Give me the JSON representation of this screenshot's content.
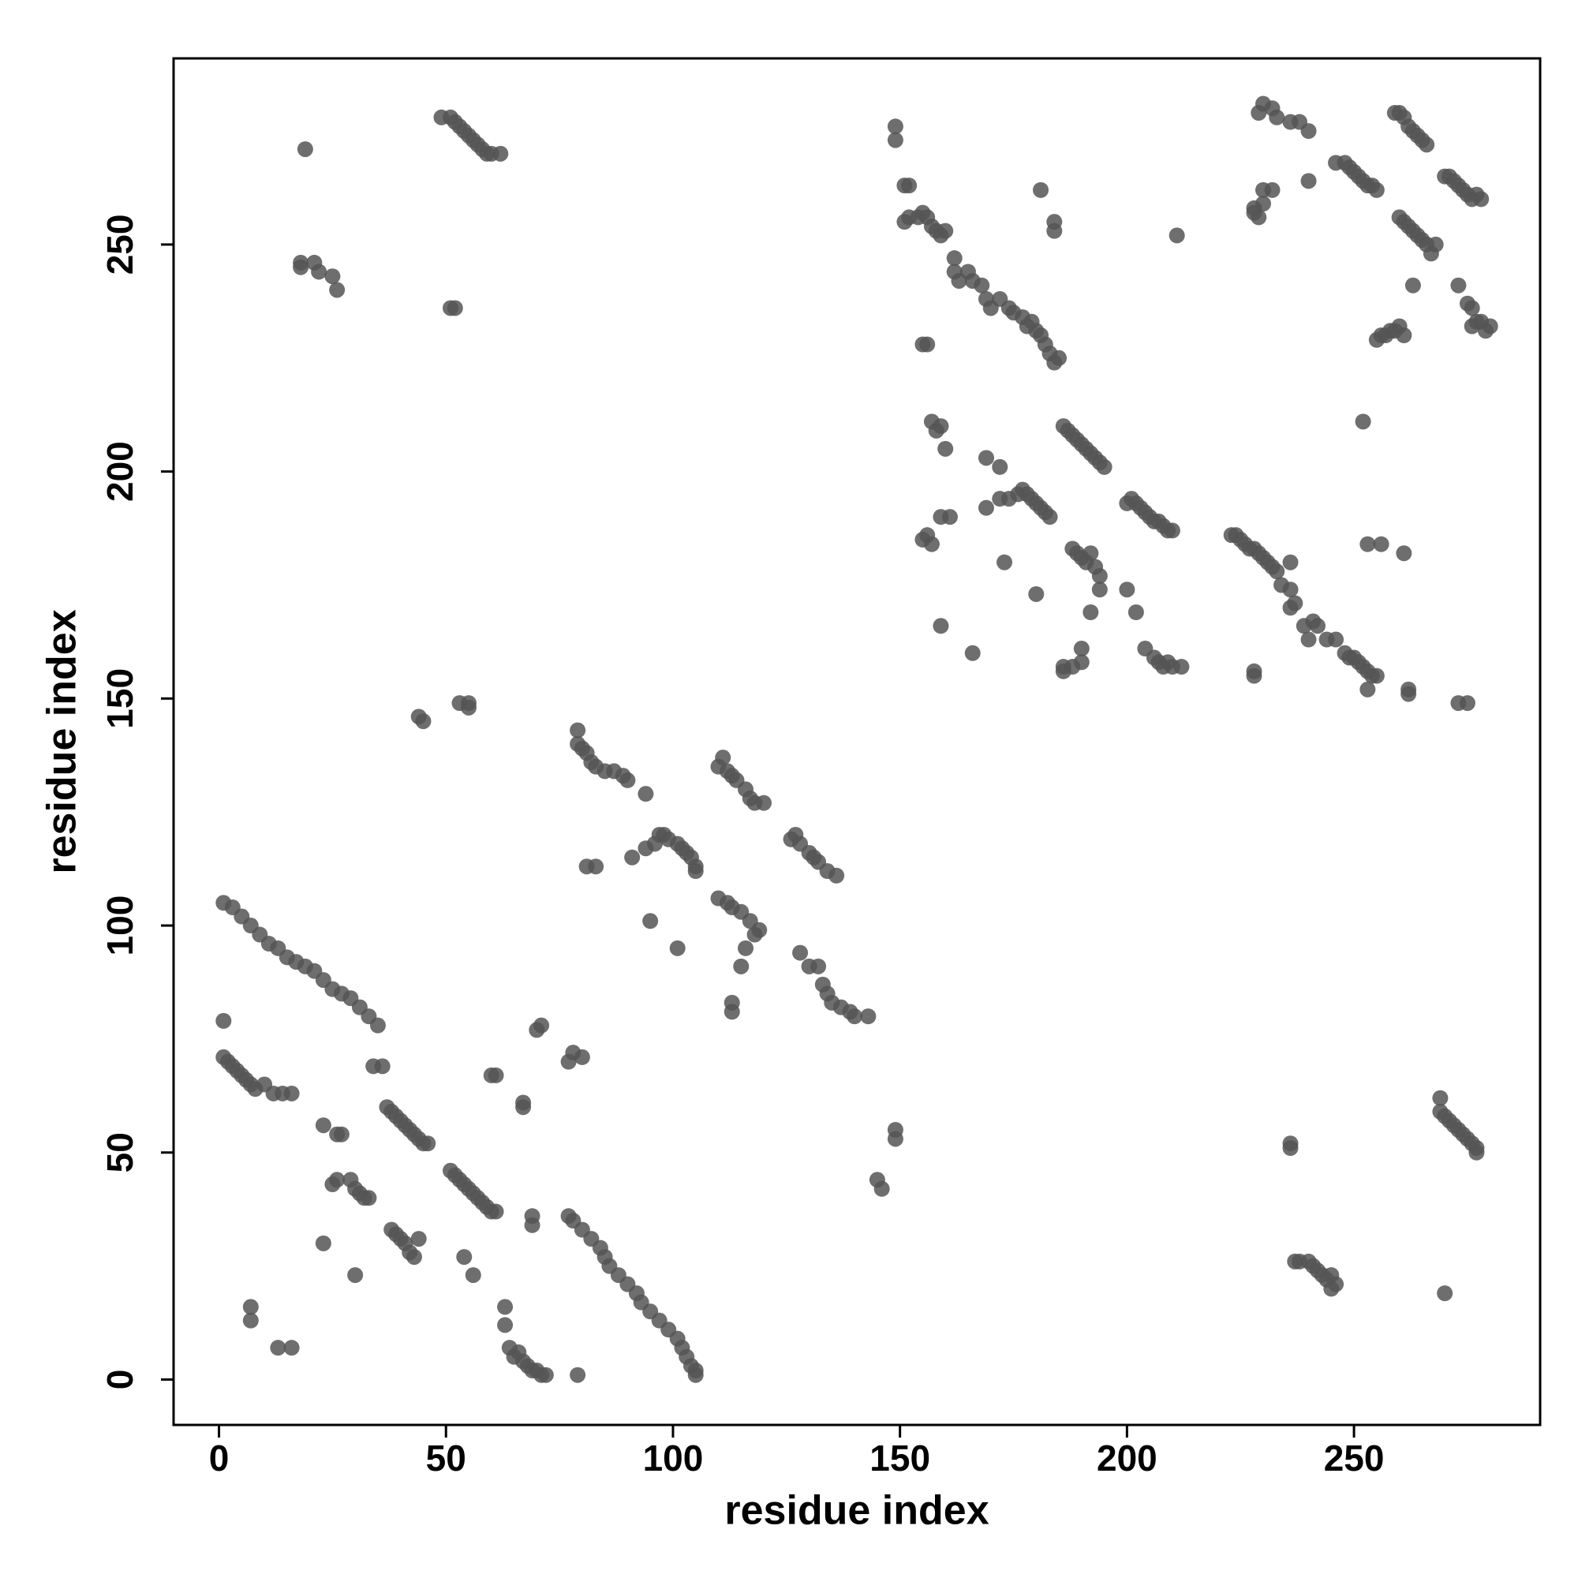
{
  "chart_data": {
    "type": "scatter",
    "xlabel": "residue index",
    "ylabel": "residue index",
    "color": "#555555",
    "xlim": [
      -10,
      291
    ],
    "ylim": [
      -10,
      291
    ],
    "xticks": [
      0,
      50,
      100,
      150,
      200,
      250
    ],
    "yticks": [
      0,
      50,
      100,
      150,
      200,
      250
    ],
    "x": [
      1,
      3,
      5,
      7,
      9,
      11,
      13,
      15,
      17,
      19,
      21,
      23,
      25,
      27,
      29,
      31,
      33,
      35,
      1,
      2,
      3,
      4,
      5,
      6,
      7,
      8,
      10,
      12,
      14,
      16,
      1,
      37,
      38,
      39,
      40,
      41,
      42,
      43,
      44,
      45,
      46,
      34,
      36,
      51,
      52,
      53,
      54,
      55,
      56,
      57,
      58,
      59,
      60,
      61,
      25,
      26,
      29,
      30,
      31,
      32,
      33,
      23,
      26,
      27,
      38,
      39,
      40,
      41,
      42,
      43,
      44,
      23,
      30,
      54,
      56,
      7,
      7,
      13,
      16,
      77,
      78,
      80,
      82,
      84,
      85,
      86,
      88,
      90,
      92,
      93,
      95,
      97,
      99,
      101,
      102,
      103,
      104,
      105,
      105,
      63,
      63,
      64,
      65,
      66,
      67,
      68,
      69,
      70,
      71,
      72,
      79,
      69,
      69,
      67,
      67,
      60,
      61,
      70,
      71,
      77,
      78,
      80,
      49,
      51,
      52,
      53,
      54,
      55,
      56,
      57,
      58,
      59,
      60,
      62,
      19,
      18,
      18,
      21,
      22,
      25,
      26,
      51,
      52,
      44,
      45,
      53,
      55,
      55,
      79,
      79,
      80,
      81,
      82,
      83,
      85,
      87,
      89,
      90,
      94,
      81,
      83,
      91,
      94,
      96,
      97,
      98,
      99,
      101,
      102,
      103,
      104,
      105,
      105,
      95,
      101,
      110,
      111,
      112,
      113,
      114,
      116,
      117,
      118,
      120,
      110,
      112,
      113,
      115,
      117,
      118,
      119,
      116,
      115,
      113,
      113,
      126,
      127,
      128,
      130,
      131,
      132,
      134,
      136,
      128,
      130,
      132,
      133,
      134,
      135,
      137,
      139,
      140,
      143,
      145,
      146,
      149,
      149,
      149,
      149,
      151,
      152,
      151,
      152,
      154,
      155,
      156,
      157,
      158,
      159,
      160,
      162,
      162,
      163,
      165,
      166,
      168,
      169,
      170,
      172,
      174,
      175,
      177,
      178,
      179,
      180,
      181,
      182,
      183,
      184,
      185,
      181,
      184,
      184,
      155,
      156,
      211,
      155,
      156,
      157,
      157,
      158,
      159,
      160,
      159,
      161,
      159,
      166,
      169,
      169,
      172,
      172,
      173,
      174,
      176,
      177,
      178,
      179,
      180,
      181,
      182,
      183,
      180,
      186,
      186,
      188,
      190,
      190,
      186,
      187,
      188,
      189,
      190,
      191,
      192,
      193,
      194,
      195,
      188,
      189,
      190,
      191,
      192,
      193,
      194,
      194,
      192,
      200,
      201,
      202,
      203,
      204,
      205,
      206,
      207,
      208,
      209,
      210,
      200,
      202,
      204,
      206,
      207,
      208,
      209,
      210,
      212,
      223,
      224,
      225,
      226,
      227,
      228,
      229,
      230,
      231,
      232,
      233,
      234,
      236,
      236,
      236,
      237,
      239,
      240,
      241,
      242,
      244,
      246,
      248,
      249,
      250,
      251,
      252,
      253,
      254,
      255,
      253,
      256,
      253,
      261,
      262,
      262,
      252,
      228,
      228,
      275,
      273,
      228,
      228,
      229,
      230,
      230,
      232,
      229,
      230,
      232,
      233,
      236,
      238,
      240,
      240,
      246,
      248,
      249,
      250,
      251,
      252,
      253,
      254,
      255,
      259,
      260,
      261,
      262,
      263,
      264,
      265,
      266,
      260,
      261,
      262,
      263,
      264,
      265,
      266,
      267,
      268,
      263,
      270,
      271,
      272,
      273,
      274,
      275,
      276,
      277,
      278,
      273,
      275,
      276,
      277,
      276,
      278,
      279,
      280,
      255,
      256,
      257,
      258,
      259,
      260,
      261,
      269,
      269,
      270,
      271,
      272,
      273,
      274,
      275,
      276,
      277,
      277,
      236,
      236,
      237,
      238,
      240,
      241,
      242,
      243,
      244,
      245,
      246,
      245,
      270
    ],
    "values": [
      105,
      104,
      102,
      100,
      98,
      96,
      95,
      93,
      92,
      91,
      90,
      88,
      86,
      85,
      84,
      82,
      80,
      78,
      71,
      70,
      69,
      68,
      67,
      66,
      65,
      64,
      65,
      63,
      63,
      63,
      79,
      60,
      59,
      58,
      57,
      56,
      55,
      54,
      53,
      52,
      52,
      69,
      69,
      46,
      45,
      44,
      43,
      42,
      41,
      40,
      39,
      38,
      37,
      37,
      43,
      44,
      44,
      42,
      41,
      40,
      40,
      56,
      54,
      54,
      33,
      32,
      31,
      30,
      28,
      27,
      31,
      30,
      23,
      27,
      23,
      16,
      13,
      7,
      7,
      36,
      35,
      33,
      31,
      29,
      27,
      25,
      23,
      21,
      19,
      17,
      15,
      13,
      11,
      9,
      7,
      5,
      3,
      2,
      1,
      16,
      12,
      7,
      5,
      6,
      4,
      3,
      2,
      2,
      1,
      1,
      1,
      36,
      34,
      61,
      60,
      67,
      67,
      77,
      78,
      70,
      72,
      71,
      278,
      278,
      277,
      276,
      275,
      274,
      273,
      272,
      271,
      270,
      270,
      270,
      271,
      246,
      245,
      246,
      244,
      243,
      240,
      236,
      236,
      146,
      145,
      149,
      149,
      148,
      143,
      140,
      139,
      138,
      136,
      135,
      134,
      134,
      133,
      132,
      129,
      113,
      113,
      115,
      117,
      118,
      120,
      120,
      119,
      118,
      117,
      116,
      115,
      113,
      112,
      101,
      95,
      135,
      137,
      134,
      133,
      132,
      130,
      128,
      127,
      127,
      106,
      105,
      104,
      103,
      101,
      98,
      99,
      95,
      91,
      83,
      81,
      119,
      120,
      118,
      116,
      115,
      114,
      112,
      111,
      94,
      91,
      91,
      87,
      85,
      83,
      82,
      81,
      80,
      80,
      44,
      42,
      55,
      53,
      276,
      273,
      263,
      263,
      255,
      256,
      256,
      257,
      256,
      254,
      253,
      252,
      253,
      247,
      244,
      242,
      244,
      242,
      241,
      238,
      236,
      238,
      236,
      235,
      234,
      232,
      233,
      231,
      230,
      228,
      226,
      224,
      225,
      262,
      255,
      253,
      228,
      228,
      252,
      185,
      186,
      184,
      211,
      209,
      210,
      205,
      190,
      190,
      166,
      160,
      203,
      192,
      201,
      194,
      180,
      194,
      195,
      196,
      195,
      194,
      193,
      192,
      191,
      190,
      173,
      157,
      156,
      157,
      158,
      161,
      210,
      209,
      208,
      207,
      206,
      205,
      204,
      203,
      202,
      201,
      183,
      182,
      181,
      180,
      182,
      179,
      177,
      174,
      169,
      193,
      194,
      193,
      192,
      191,
      190,
      189,
      189,
      188,
      187,
      187,
      174,
      169,
      161,
      159,
      158,
      157,
      158,
      157,
      157,
      186,
      186,
      185,
      184,
      183,
      183,
      182,
      181,
      180,
      179,
      178,
      175,
      180,
      174,
      170,
      171,
      166,
      163,
      167,
      166,
      163,
      163,
      160,
      159,
      159,
      158,
      157,
      156,
      155,
      155,
      152,
      184,
      184,
      182,
      152,
      151,
      211,
      156,
      155,
      149,
      149,
      257,
      258,
      256,
      259,
      262,
      262,
      279,
      281,
      280,
      278,
      277,
      277,
      275,
      264,
      268,
      268,
      267,
      266,
      265,
      264,
      263,
      263,
      262,
      279,
      279,
      278,
      276,
      275,
      274,
      273,
      272,
      256,
      255,
      254,
      253,
      252,
      251,
      250,
      248,
      250,
      241,
      265,
      265,
      264,
      263,
      262,
      261,
      260,
      261,
      260,
      241,
      237,
      236,
      233,
      232,
      233,
      231,
      232,
      229,
      230,
      230,
      231,
      231,
      232,
      230,
      62,
      59,
      58,
      57,
      56,
      55,
      54,
      53,
      52,
      51,
      50,
      52,
      51,
      26,
      26,
      26,
      25,
      24,
      23,
      22,
      23,
      21,
      20,
      19
    ]
  }
}
